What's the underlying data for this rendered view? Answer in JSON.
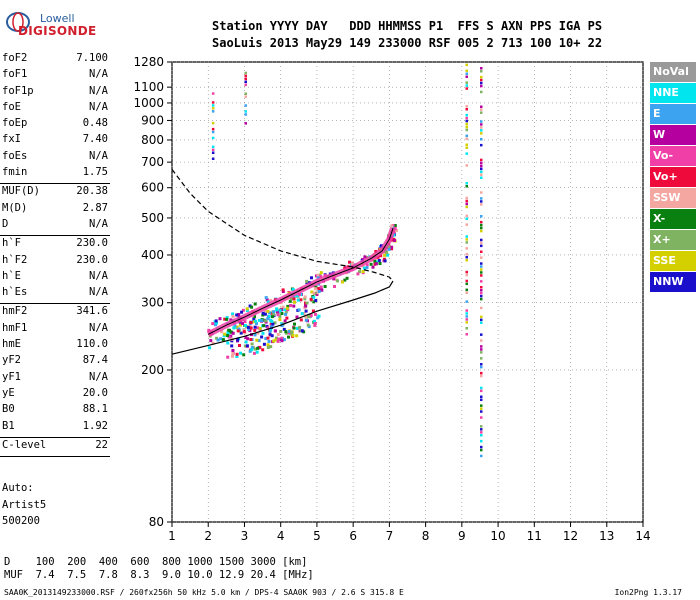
{
  "logo": {
    "line1": "Lowell",
    "line2": "DIGISONDE"
  },
  "header": {
    "line1": "Station YYYY DAY   DDD HHMMSS P1  FFS S AXN PPS IGA PS",
    "line2": "SaoLuis 2013 May29 149 233000 RSF 005 2 713 100 10+ 22"
  },
  "params": [
    [
      [
        "foF2",
        "7.100"
      ],
      [
        "foF1",
        "N/A"
      ],
      [
        "foF1p",
        "N/A"
      ],
      [
        "foE",
        "N/A"
      ],
      [
        "foEp",
        "0.48"
      ],
      [
        "fxI",
        "7.40"
      ],
      [
        "foEs",
        "N/A"
      ],
      [
        "fmin",
        "1.75"
      ]
    ],
    [
      [
        "MUF(D)",
        "20.38"
      ],
      [
        "M(D)",
        "2.87"
      ],
      [
        "D",
        "N/A"
      ]
    ],
    [
      [
        "h`F",
        "230.0"
      ],
      [
        "h`F2",
        "230.0"
      ],
      [
        "h`E",
        "N/A"
      ],
      [
        "h`Es",
        "N/A"
      ]
    ],
    [
      [
        "hmF2",
        "341.6"
      ],
      [
        "hmF1",
        "N/A"
      ],
      [
        "hmE",
        "110.0"
      ],
      [
        "yF2",
        "87.4"
      ],
      [
        "yF1",
        "N/A"
      ],
      [
        "yE",
        "20.0"
      ],
      [
        "B0",
        "88.1"
      ],
      [
        "B1",
        "1.92"
      ]
    ],
    [
      [
        "C-level",
        "22"
      ]
    ]
  ],
  "auto": [
    "Auto:",
    "Artist5",
    "500200"
  ],
  "muf_table": {
    "line1": "D    100  200  400  600  800 1000 1500 3000 [km]",
    "line2": "MUF  7.4  7.5  7.8  8.3  9.0 10.0 12.9 20.4 [MHz]"
  },
  "footer": {
    "left": "SAA0K_2013149233000.RSF / 260fx256h 50 kHz 5.0 km / DPS-4 SAA0K 903 / 2.6 S 315.8 E",
    "right": "Ion2Png 1.3.17"
  },
  "legend": [
    {
      "label": "NoVal",
      "color": "#9a9a9a"
    },
    {
      "label": "NNE",
      "color": "#00e5ee"
    },
    {
      "label": "E",
      "color": "#3ba3f0"
    },
    {
      "label": "W",
      "color": "#b5009f"
    },
    {
      "label": "Vo-",
      "color": "#f040a8"
    },
    {
      "label": "Vo+",
      "color": "#ef0a3c"
    },
    {
      "label": "SSW",
      "color": "#f4a6a0"
    },
    {
      "label": "X-",
      "color": "#0a8010"
    },
    {
      "label": "X+",
      "color": "#7fb362"
    },
    {
      "label": "SSE",
      "color": "#d4d000"
    },
    {
      "label": "NNW",
      "color": "#1a10cc"
    }
  ],
  "chart_data": {
    "type": "scatter",
    "xlabel": "",
    "ylabel": "",
    "xlim": [
      1,
      14
    ],
    "ylim": [
      80,
      1280
    ],
    "y_scale": "log",
    "grid": true,
    "xticks": [
      1,
      2,
      3,
      4,
      5,
      6,
      7,
      8,
      9,
      10,
      11,
      12,
      13,
      14
    ],
    "yticks": [
      80,
      200,
      300,
      400,
      500,
      600,
      700,
      800,
      900,
      1000,
      1100,
      1280
    ],
    "profile_line": {
      "style": "solid",
      "x": [
        1.0,
        2.0,
        3.0,
        4.0,
        5.0,
        6.0,
        6.6,
        7.0,
        7.1
      ],
      "y": [
        220,
        232,
        245,
        262,
        285,
        305,
        318,
        330,
        342
      ]
    },
    "model_curve": {
      "style": "dashed",
      "x": [
        1.0,
        1.5,
        2.0,
        3.0,
        4.0,
        5.0,
        6.0,
        6.6,
        7.0,
        7.1
      ],
      "y": [
        670,
        580,
        520,
        450,
        410,
        385,
        372,
        360,
        350,
        342
      ]
    },
    "trace_ordinary": {
      "x": [
        2.0,
        2.5,
        3.0,
        3.5,
        4.0,
        4.5,
        5.0,
        5.5,
        6.0,
        6.5,
        6.8,
        7.0,
        7.1
      ],
      "y": [
        248,
        262,
        275,
        290,
        305,
        322,
        340,
        355,
        370,
        392,
        410,
        440,
        470
      ]
    },
    "trace_extraordinary": {
      "x": [
        2.5,
        3.0,
        3.5,
        4.0,
        4.5,
        5.0
      ],
      "y": [
        240,
        250,
        258,
        268,
        280,
        295
      ]
    }
  }
}
